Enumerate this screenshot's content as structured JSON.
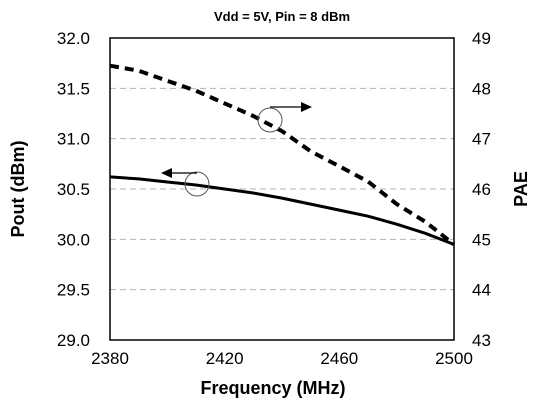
{
  "chart_data": {
    "type": "line",
    "title": "Vdd = 5V, Pin = 8 dBm",
    "xlabel": "Frequency (MHz)",
    "ylabel_left": "Pout (dBm)",
    "ylabel_right": "PAE",
    "xlim": [
      2380,
      2500
    ],
    "ylim_left": [
      29.0,
      32.0
    ],
    "ylim_right": [
      43,
      49
    ],
    "x_ticks": [
      "2380",
      "2420",
      "2460",
      "2500"
    ],
    "y_left_ticks": [
      "29.0",
      "29.5",
      "30.0",
      "30.5",
      "31.0",
      "31.5",
      "32.0"
    ],
    "y_right_ticks": [
      "43",
      "44",
      "45",
      "46",
      "47",
      "48",
      "49"
    ],
    "grid": "horizontal dashed",
    "series": [
      {
        "axis": "left",
        "style": "solid",
        "x": [
          2380,
          2390,
          2400,
          2410,
          2420,
          2430,
          2440,
          2450,
          2460,
          2470,
          2480,
          2490,
          2500
        ],
        "values": [
          30.62,
          30.6,
          30.57,
          30.54,
          30.5,
          30.46,
          30.41,
          30.35,
          30.29,
          30.23,
          30.15,
          30.06,
          29.95
        ]
      },
      {
        "axis": "right",
        "style": "dashed",
        "x": [
          2380,
          2390,
          2400,
          2410,
          2420,
          2430,
          2440,
          2450,
          2460,
          2470,
          2480,
          2490,
          2500
        ],
        "values": [
          48.45,
          48.35,
          48.15,
          47.95,
          47.7,
          47.45,
          47.15,
          46.75,
          46.45,
          46.15,
          45.7,
          45.35,
          44.9
        ]
      }
    ],
    "colors": {
      "line": "#000000",
      "grid": "#b4b4b4",
      "frame": "#000000"
    }
  }
}
